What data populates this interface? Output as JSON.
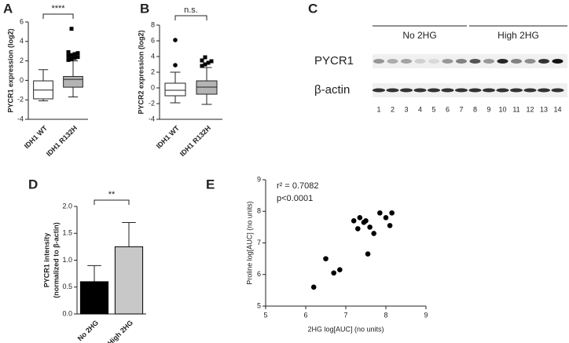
{
  "chart_data": [
    {
      "type": "box",
      "panel": "A",
      "ylabel": "PYCR1 expression (log2)",
      "annotation": "****",
      "categories": [
        "IDH1 WT",
        "IDH1 R132H"
      ],
      "ylim": [
        -4,
        6
      ],
      "yticks": [
        -4,
        -2,
        0,
        2,
        4,
        6
      ],
      "series": [
        {
          "color": "#ffffff",
          "marker": "square",
          "whisker_low": -2.1,
          "q1": -1.9,
          "median": -1.0,
          "q3": -0.05,
          "whisker_high": 1.1,
          "outliers": []
        },
        {
          "color": "#b4b4b4",
          "marker": "square",
          "whisker_low": -1.7,
          "q1": -0.7,
          "median": 0.1,
          "q3": 0.4,
          "whisker_high": 2.0,
          "outliers": [
            2.1,
            2.2,
            2.3,
            2.4,
            2.5,
            2.6,
            2.7,
            2.8,
            2.9,
            5.3
          ]
        }
      ]
    },
    {
      "type": "box",
      "panel": "B",
      "ylabel": "PYCR2 expression (log2)",
      "annotation": "n.s.",
      "categories": [
        "IDH1 WT",
        "IDH1 R132H"
      ],
      "ylim": [
        -4,
        8
      ],
      "yticks": [
        -4,
        -2,
        0,
        2,
        4,
        6,
        8
      ],
      "series": [
        {
          "color": "#ffffff",
          "marker": "circle",
          "whisker_low": -1.9,
          "q1": -1.0,
          "median": -0.3,
          "q3": 0.6,
          "whisker_high": 2.0,
          "outliers": [
            6.1,
            2.9
          ]
        },
        {
          "color": "#b4b4b4",
          "marker": "square",
          "whisker_low": -2.1,
          "q1": -0.8,
          "median": 0.1,
          "q3": 0.9,
          "whisker_high": 2.6,
          "outliers": [
            2.8,
            3.0,
            3.2,
            3.4,
            3.5,
            3.9
          ]
        }
      ]
    },
    {
      "type": "bar",
      "panel": "D",
      "ylabel": [
        "PYCR1 intensity",
        "(normalized to β-actin)"
      ],
      "annotation": "**",
      "categories": [
        "No 2HG",
        "High 2HG"
      ],
      "values": [
        0.6,
        1.25
      ],
      "errors": [
        0.3,
        0.45
      ],
      "colors": [
        "#000000",
        "#c8c8c8"
      ],
      "ylim": [
        0,
        2
      ],
      "yticks": [
        {
          "value": 0,
          "label": "0.0"
        },
        {
          "value": 0.5,
          "label": "0.5"
        },
        {
          "value": 1,
          "label": "1.0"
        },
        {
          "value": 1.5,
          "label": "1.5"
        },
        {
          "value": 2,
          "label": "2.0"
        }
      ]
    },
    {
      "type": "scatter",
      "panel": "E",
      "xlabel": "2HG log[AUC] (no units)",
      "ylabel": "Proline log[AUC] (no units)",
      "annotations": [
        "r² = 0.7082",
        "p<0.0001"
      ],
      "color": "#000000",
      "x": [
        6.2,
        6.5,
        6.7,
        6.85,
        7.2,
        7.3,
        7.35,
        7.45,
        7.5,
        7.55,
        7.6,
        7.7,
        7.85,
        8.0,
        8.1,
        8.15
      ],
      "values": [
        5.6,
        6.5,
        6.05,
        6.15,
        7.7,
        7.45,
        7.8,
        7.65,
        7.7,
        6.65,
        7.5,
        7.3,
        7.95,
        7.8,
        7.55,
        7.95
      ],
      "xlim": [
        5,
        9
      ],
      "ylim": [
        5,
        9
      ],
      "xticks": [
        5,
        6,
        7,
        8,
        9
      ],
      "yticks": [
        5,
        6,
        7,
        8,
        9
      ]
    }
  ],
  "blot": {
    "panel": "C",
    "groups": [
      "No 2HG",
      "High 2HG"
    ],
    "rows": [
      "PYCR1",
      "β-actin"
    ],
    "lanes": [
      "1",
      "2",
      "3",
      "4",
      "5",
      "6",
      "7",
      "8",
      "9",
      "10",
      "11",
      "12",
      "13",
      "14"
    ]
  }
}
